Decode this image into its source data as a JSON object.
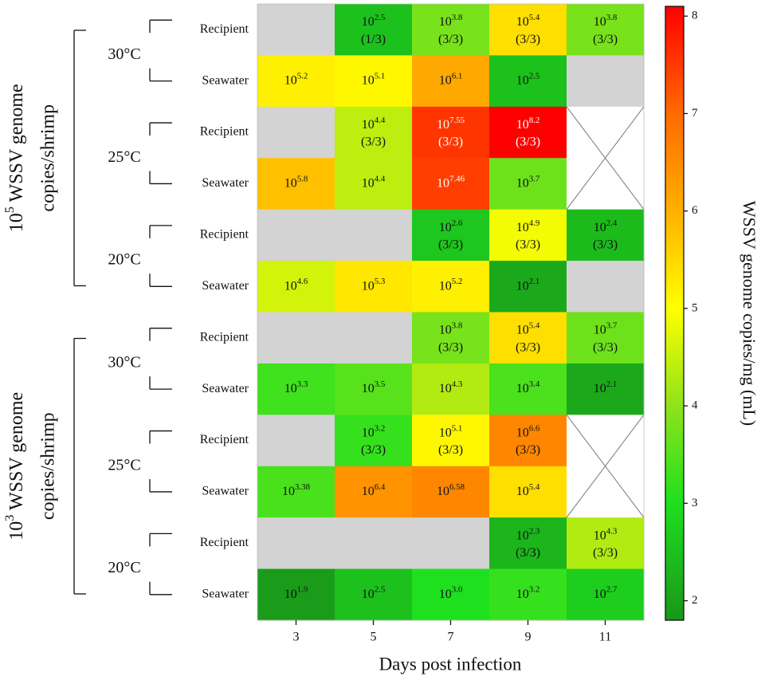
{
  "chart_data": {
    "type": "heatmap",
    "xlabel": "Days post infection",
    "x_categories": [
      "3",
      "5",
      "7",
      "9",
      "11"
    ],
    "row_labels": [
      "Recipient",
      "Seawater",
      "Recipient",
      "Seawater",
      "Recipient",
      "Seawater",
      "Recipient",
      "Seawater",
      "Recipient",
      "Seawater",
      "Recipient",
      "Seawater"
    ],
    "temperature_labels": [
      "30°C",
      "25°C",
      "20°C",
      "30°C",
      "25°C",
      "20°C"
    ],
    "group_labels": [
      [
        "10^5 WSSV genome",
        "copies/shrimp"
      ],
      [
        "10^3 WSSV genome",
        "copies/shrimp"
      ]
    ],
    "values": [
      [
        null,
        2.5,
        3.8,
        5.4,
        3.8
      ],
      [
        5.2,
        5.1,
        6.1,
        2.5,
        null
      ],
      [
        null,
        4.4,
        7.55,
        8.2,
        null
      ],
      [
        5.8,
        4.4,
        7.46,
        3.7,
        null
      ],
      [
        null,
        null,
        2.6,
        4.9,
        2.4
      ],
      [
        4.6,
        5.3,
        5.2,
        2.1,
        null
      ],
      [
        null,
        null,
        3.8,
        5.4,
        3.7
      ],
      [
        3.3,
        3.5,
        4.3,
        3.4,
        2.1
      ],
      [
        null,
        3.2,
        5.1,
        6.6,
        null
      ],
      [
        3.38,
        6.4,
        6.58,
        5.4,
        null
      ],
      [
        null,
        null,
        null,
        2.3,
        4.3
      ],
      [
        1.9,
        2.5,
        3.0,
        3.2,
        2.7
      ]
    ],
    "value_labels": [
      [
        null,
        "10^2.5",
        "10^3.8",
        "10^5.4",
        "10^3.8"
      ],
      [
        "10^5.2",
        "10^5.1",
        "10^6.1",
        "10^2.5",
        null
      ],
      [
        null,
        "10^4.4",
        "10^7.55",
        "10^8.2",
        null
      ],
      [
        "10^5.8",
        "10^4.4",
        "10^7.46",
        "10^3.7",
        null
      ],
      [
        null,
        null,
        "10^2.6",
        "10^4.9",
        "10^2.4"
      ],
      [
        "10^4.6",
        "10^5.3",
        "10^5.2",
        "10^2.1",
        null
      ],
      [
        null,
        null,
        "10^3.8",
        "10^5.4",
        "10^3.7"
      ],
      [
        "10^3.3",
        "10^3.5",
        "10^4.3",
        "10^3.4",
        "10^2.1"
      ],
      [
        null,
        "10^3.2",
        "10^5.1",
        "10^6.6",
        null
      ],
      [
        "10^3.38",
        "10^6.4",
        "10^6.58",
        "10^5.4",
        null
      ],
      [
        null,
        null,
        null,
        "10^2.3",
        "10^4.3"
      ],
      [
        "10^1.9",
        "10^2.5",
        "10^3.0",
        "10^3.2",
        "10^2.7"
      ]
    ],
    "positive_labels": [
      [
        null,
        "(1/3)",
        "(3/3)",
        "(3/3)",
        "(3/3)"
      ],
      [
        null,
        null,
        null,
        null,
        null
      ],
      [
        null,
        "(3/3)",
        "(3/3)",
        "(3/3)",
        null
      ],
      [
        null,
        null,
        null,
        null,
        null
      ],
      [
        null,
        null,
        "(3/3)",
        "(3/3)",
        "(3/3)"
      ],
      [
        null,
        null,
        null,
        null,
        null
      ],
      [
        null,
        null,
        "(3/3)",
        "(3/3)",
        "(3/3)"
      ],
      [
        null,
        null,
        null,
        null,
        null
      ],
      [
        null,
        "(3/3)",
        "(3/3)",
        "(3/3)",
        null
      ],
      [
        null,
        null,
        null,
        null,
        null
      ],
      [
        null,
        null,
        null,
        "(3/3)",
        "(3/3)"
      ],
      [
        null,
        null,
        null,
        null,
        null
      ]
    ],
    "crossed": [
      {
        "rows": [
          2,
          3
        ],
        "column": 4
      },
      {
        "rows": [
          8,
          9
        ],
        "column": 4
      }
    ],
    "missing_color": "#d3d3d3",
    "colorbar": {
      "label": "WSSV genome copies/mg (mL)",
      "lim": [
        1.8,
        8.1
      ],
      "ticks": [
        2,
        3,
        4,
        5,
        6,
        7,
        8
      ],
      "colormap": [
        [
          1.8,
          "#1a961a"
        ],
        [
          3,
          "#1ee01e"
        ],
        [
          4,
          "#8fe31a"
        ],
        [
          5,
          "#ffff00"
        ],
        [
          6,
          "#ffb000"
        ],
        [
          7,
          "#ff6a00"
        ],
        [
          8.1,
          "#ff0000"
        ]
      ]
    }
  }
}
